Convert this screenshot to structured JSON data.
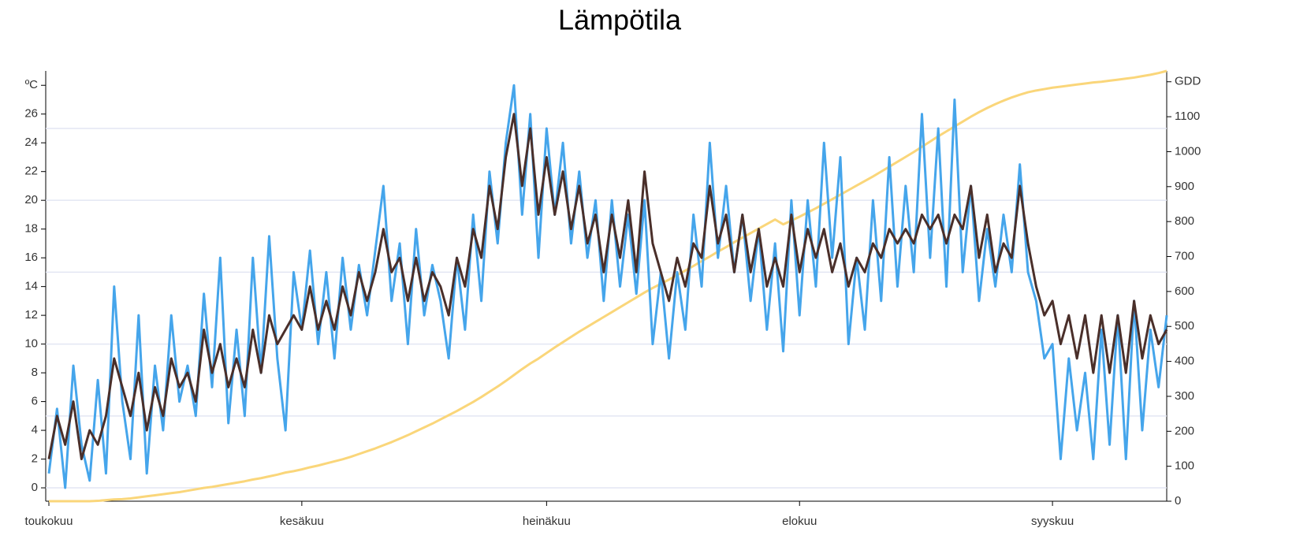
{
  "chart_data": {
    "type": "line",
    "title": "Lämpötila",
    "categories": [
      "toukokuu",
      null,
      null,
      null,
      null,
      null,
      null,
      null,
      null,
      null,
      null,
      null,
      null,
      null,
      null,
      null,
      null,
      null,
      null,
      null,
      null,
      null,
      null,
      null,
      null,
      null,
      null,
      null,
      null,
      null,
      null,
      "kesäkuu",
      null,
      null,
      null,
      null,
      null,
      null,
      null,
      null,
      null,
      null,
      null,
      null,
      null,
      null,
      null,
      null,
      null,
      null,
      null,
      null,
      null,
      null,
      null,
      null,
      null,
      null,
      null,
      null,
      null,
      "heinäkuu",
      null,
      null,
      null,
      null,
      null,
      null,
      null,
      null,
      null,
      null,
      null,
      null,
      null,
      null,
      null,
      null,
      null,
      null,
      null,
      null,
      null,
      null,
      null,
      null,
      null,
      null,
      null,
      null,
      null,
      null,
      "elokuu",
      null,
      null,
      null,
      null,
      null,
      null,
      null,
      null,
      null,
      null,
      null,
      null,
      null,
      null,
      null,
      null,
      null,
      null,
      null,
      null,
      null,
      null,
      null,
      null,
      null,
      null,
      null,
      null,
      null,
      null,
      "syyskuu",
      null,
      null,
      null,
      null,
      null,
      null,
      null,
      null,
      null,
      null,
      null,
      null,
      null,
      null
    ],
    "series": [
      {
        "color": "#fad67a",
        "axis": "y2",
        "values": [
          0,
          0,
          0,
          0,
          0,
          0,
          1,
          3,
          5,
          6,
          8,
          11,
          14,
          17,
          20,
          23,
          26,
          30,
          34,
          38,
          41,
          45,
          49,
          53,
          57,
          62,
          66,
          71,
          76,
          82,
          86,
          91,
          97,
          102,
          108,
          114,
          120,
          127,
          135,
          143,
          151,
          160,
          169,
          179,
          189,
          200,
          211,
          222,
          234,
          246,
          258,
          271,
          284,
          298,
          313,
          328,
          344,
          361,
          378,
          394,
          408,
          424,
          440,
          455,
          470,
          485,
          499,
          513,
          527,
          541,
          555,
          569,
          583,
          597,
          610,
          622,
          634,
          647,
          660,
          673,
          687,
          700,
          714,
          727,
          741,
          754,
          767,
          780,
          793,
          806,
          792,
          803,
          814,
          826,
          838,
          851,
          864,
          877,
          890,
          903,
          916,
          929,
          943,
          957,
          971,
          985,
          999,
          1014,
          1029,
          1044,
          1058,
          1072,
          1086,
          1100,
          1113,
          1125,
          1136,
          1146,
          1155,
          1163,
          1170,
          1175,
          1179,
          1183,
          1186,
          1189,
          1192,
          1195,
          1198,
          1200,
          1203,
          1206,
          1209,
          1212,
          1216,
          1220,
          1225,
          1231
        ]
      },
      {
        "color": "#45a5eb",
        "values": [
          1,
          5.5,
          0,
          8.5,
          3,
          0.5,
          7.5,
          1,
          14,
          6,
          2,
          12,
          1,
          8.5,
          4,
          12,
          6,
          8.5,
          5,
          13.5,
          7,
          16,
          4.5,
          11,
          5,
          16,
          8,
          17.5,
          9,
          4,
          15,
          11,
          16.5,
          10,
          15,
          9,
          16,
          11,
          15.5,
          12,
          16.5,
          21,
          13,
          17,
          10,
          18,
          12,
          15.5,
          13,
          9,
          16,
          11,
          19,
          13,
          22,
          17,
          24,
          28,
          19,
          26,
          16,
          25,
          19,
          24,
          17,
          22,
          16,
          20,
          13,
          20,
          14,
          19,
          13.5,
          20,
          10,
          15,
          9,
          15,
          11,
          19,
          14,
          24,
          16,
          21,
          15,
          19,
          13,
          18,
          11,
          17,
          9.5,
          20,
          12,
          20,
          14,
          24,
          16,
          23,
          10,
          16,
          11,
          20,
          13,
          23,
          14,
          21,
          15,
          26,
          16,
          25,
          14,
          27,
          15,
          21,
          13,
          18,
          14,
          19,
          15,
          22.5,
          15,
          13,
          9,
          10,
          2,
          9,
          4,
          8,
          2,
          11,
          3,
          12,
          2,
          13,
          4,
          11,
          7,
          12
        ]
      },
      {
        "color": "#4a2f2a",
        "values": [
          2,
          5,
          3,
          6,
          2,
          4,
          3,
          5,
          9,
          7,
          5,
          8,
          4,
          7,
          5,
          9,
          7,
          8,
          6,
          11,
          8,
          10,
          7,
          9,
          7,
          11,
          8,
          12,
          10,
          11,
          12,
          11,
          14,
          11,
          13,
          11,
          14,
          12,
          15,
          13,
          15,
          18,
          15,
          16,
          13,
          16,
          13,
          15,
          14,
          12,
          16,
          14,
          18,
          16,
          21,
          18,
          23,
          26,
          21,
          25,
          19,
          23,
          19,
          22,
          18,
          21,
          17,
          19,
          15,
          19,
          16,
          20,
          15,
          22,
          17,
          15,
          13,
          16,
          14,
          17,
          16,
          21,
          17,
          19,
          15,
          19,
          15,
          18,
          14,
          16,
          14,
          19,
          15,
          18,
          16,
          18,
          15,
          17,
          14,
          16,
          15,
          17,
          16,
          18,
          17,
          18,
          17,
          19,
          18,
          19,
          17,
          19,
          18,
          21,
          16,
          19,
          15,
          17,
          16,
          21,
          17,
          14,
          12,
          13,
          10,
          12,
          9,
          12,
          8,
          12,
          8,
          12,
          8,
          13,
          9,
          12,
          10,
          11
        ]
      }
    ],
    "ylim": [
      -0.93,
      29
    ],
    "yticks": [
      0,
      2,
      4,
      6,
      8,
      10,
      12,
      14,
      16,
      18,
      20,
      22,
      24,
      26,
      {
        "value": 28,
        "label": "ºC"
      }
    ],
    "y2lim": [
      0,
      1231
    ],
    "y2ticks": [
      0,
      100,
      200,
      300,
      400,
      500,
      600,
      700,
      800,
      900,
      1000,
      1100,
      {
        "value": 1200,
        "label": "GDD"
      }
    ],
    "ygrid": [
      0,
      5,
      10,
      15,
      20,
      25
    ]
  }
}
